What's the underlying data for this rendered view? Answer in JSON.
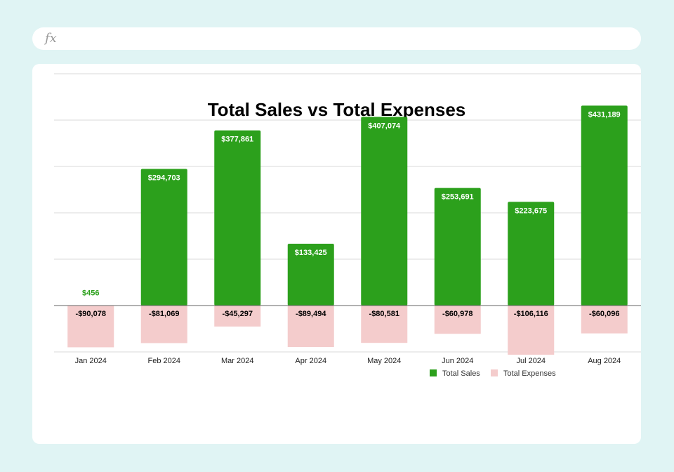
{
  "formula_bar": {
    "icon": "fx-icon",
    "label": "fx"
  },
  "chart_data": {
    "type": "bar",
    "title": "Total Sales vs Total Expenses",
    "categories": [
      "Jan 2024",
      "Feb 2024",
      "Mar 2024",
      "Apr 2024",
      "May 2024",
      "Jun 2024",
      "Jul 2024",
      "Aug 2024"
    ],
    "series": [
      {
        "name": "Total Sales",
        "color": "#2ca01c",
        "values": [
          456,
          294703,
          377861,
          133425,
          407074,
          253691,
          223675,
          431189
        ],
        "labels": [
          "$456",
          "$294,703",
          "$377,861",
          "$133,425",
          "$407,074",
          "$253,691",
          "$223,675",
          "$431,189"
        ]
      },
      {
        "name": "Total Expenses",
        "color": "#f4cccc",
        "values": [
          -90078,
          -81069,
          -45297,
          -89494,
          -80581,
          -60978,
          -106116,
          -60096
        ],
        "labels": [
          "-$90,078",
          "-$81,069",
          "-$45,297",
          "-$89,494",
          "-$80,581",
          "-$60,978",
          "-$106,116",
          "-$60,096"
        ]
      }
    ],
    "ylim": [
      -200000,
      600000
    ],
    "grid": true,
    "legend_position": "bottom-right"
  }
}
